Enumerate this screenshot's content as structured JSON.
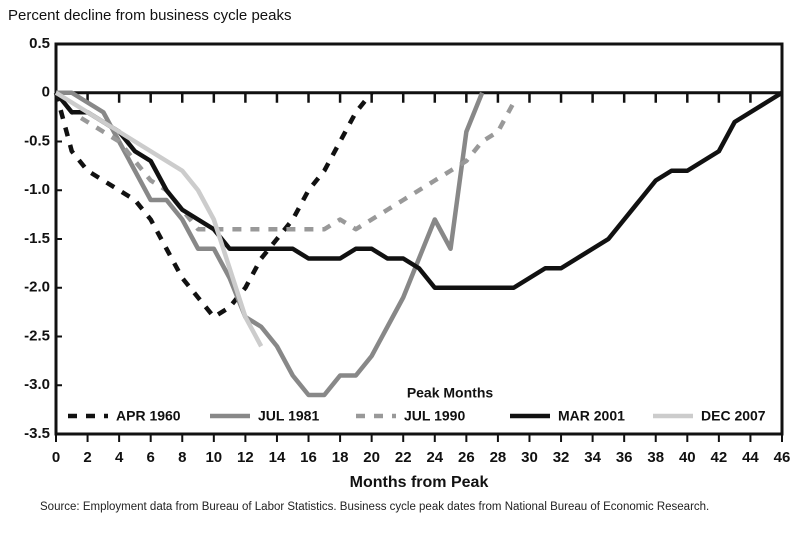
{
  "chart_data": {
    "type": "line",
    "title": "Percent decline from business cycle peaks",
    "xlabel": "Months from Peak",
    "legend_title": "Peak Months",
    "source": "Source: Employment data from Bureau of Labor Statistics.  Business cycle peak dates from National Bureau of Economic Research.",
    "x": [
      0,
      1,
      2,
      3,
      4,
      5,
      6,
      7,
      8,
      9,
      10,
      11,
      12,
      13,
      14,
      15,
      16,
      17,
      18,
      19,
      20,
      21,
      22,
      23,
      24,
      25,
      26,
      27,
      28,
      29,
      30,
      31,
      32,
      33,
      34,
      35,
      36,
      37,
      38,
      39,
      40,
      41,
      42,
      43,
      44,
      45,
      46
    ],
    "series": [
      {
        "name": "APR 1960",
        "color": "#111111",
        "dashed": true,
        "values": [
          0,
          -0.6,
          -0.8,
          -0.9,
          -1.0,
          -1.1,
          -1.3,
          -1.6,
          -1.9,
          -2.1,
          -2.3,
          -2.2,
          -2.0,
          -1.7,
          -1.5,
          -1.3,
          -1.0,
          -0.8,
          -0.5,
          -0.2,
          0,
          null,
          null,
          null,
          null,
          null,
          null,
          null,
          null,
          null,
          null,
          null,
          null,
          null,
          null,
          null,
          null,
          null,
          null,
          null,
          null,
          null,
          null,
          null,
          null,
          null,
          null
        ]
      },
      {
        "name": "JUL 1981",
        "color": "#888888",
        "dashed": false,
        "values": [
          0,
          0,
          -0.1,
          -0.2,
          -0.5,
          -0.8,
          -1.1,
          -1.1,
          -1.3,
          -1.6,
          -1.6,
          -1.9,
          -2.3,
          -2.4,
          -2.6,
          -2.9,
          -3.1,
          -3.1,
          -2.9,
          -2.9,
          -2.7,
          -2.4,
          -2.1,
          -1.7,
          -1.3,
          -1.6,
          -0.4,
          0,
          null,
          null,
          null,
          null,
          null,
          null,
          null,
          null,
          null,
          null,
          null,
          null,
          null,
          null,
          null,
          null,
          null,
          null,
          null
        ]
      },
      {
        "name": "JUL 1990",
        "color": "#999999",
        "dashed": true,
        "values": [
          0,
          -0.2,
          -0.3,
          -0.4,
          -0.5,
          -0.7,
          -0.9,
          -1.0,
          -1.2,
          -1.4,
          -1.4,
          -1.4,
          -1.4,
          -1.4,
          -1.4,
          -1.4,
          -1.4,
          -1.4,
          -1.3,
          -1.4,
          -1.3,
          -1.2,
          -1.1,
          -1.0,
          -0.9,
          -0.8,
          -0.7,
          -0.5,
          -0.4,
          -0.1,
          null,
          null,
          null,
          null,
          null,
          null,
          null,
          null,
          null,
          null,
          null,
          null,
          null,
          null,
          null,
          null,
          null
        ]
      },
      {
        "name": "MAR 2001",
        "color": "#111111",
        "dashed": false,
        "values": [
          0,
          -0.2,
          -0.2,
          -0.3,
          -0.4,
          -0.6,
          -0.7,
          -1.0,
          -1.2,
          -1.3,
          -1.4,
          -1.6,
          -1.6,
          -1.6,
          -1.6,
          -1.6,
          -1.7,
          -1.7,
          -1.7,
          -1.6,
          -1.6,
          -1.7,
          -1.7,
          -1.8,
          -2.0,
          -2.0,
          -2.0,
          -2.0,
          -2.0,
          -2.0,
          -1.9,
          -1.8,
          -1.8,
          -1.7,
          -1.6,
          -1.5,
          -1.3,
          -1.1,
          -0.9,
          -0.8,
          -0.8,
          -0.7,
          -0.6,
          -0.3,
          -0.2,
          -0.1,
          0
        ]
      },
      {
        "name": "DEC 2007",
        "color": "#cccccc",
        "dashed": false,
        "values": [
          0,
          -0.1,
          -0.2,
          -0.3,
          -0.4,
          -0.5,
          -0.6,
          -0.7,
          -0.8,
          -1.0,
          -1.3,
          -1.8,
          -2.3,
          -2.6,
          null,
          null,
          null,
          null,
          null,
          null,
          null,
          null,
          null,
          null,
          null,
          null,
          null,
          null,
          null,
          null,
          null,
          null,
          null,
          null,
          null,
          null,
          null,
          null,
          null,
          null,
          null,
          null,
          null,
          null,
          null,
          null,
          null
        ]
      }
    ],
    "xlim": [
      0,
      46
    ],
    "xticks": [
      0,
      2,
      4,
      6,
      8,
      10,
      12,
      14,
      16,
      18,
      20,
      22,
      24,
      26,
      28,
      30,
      32,
      34,
      36,
      38,
      40,
      42,
      44,
      46
    ],
    "ylim": [
      -3.5,
      0.5
    ],
    "yticks": [
      0.5,
      0,
      -0.5,
      {
        "value": -1,
        "label": "-1.0"
      },
      -1.5,
      {
        "value": -2,
        "label": "-2.0"
      },
      -2.5,
      {
        "value": -3,
        "label": "-3.0"
      },
      -3.5
    ],
    "zero_line": 0,
    "grid": false
  }
}
